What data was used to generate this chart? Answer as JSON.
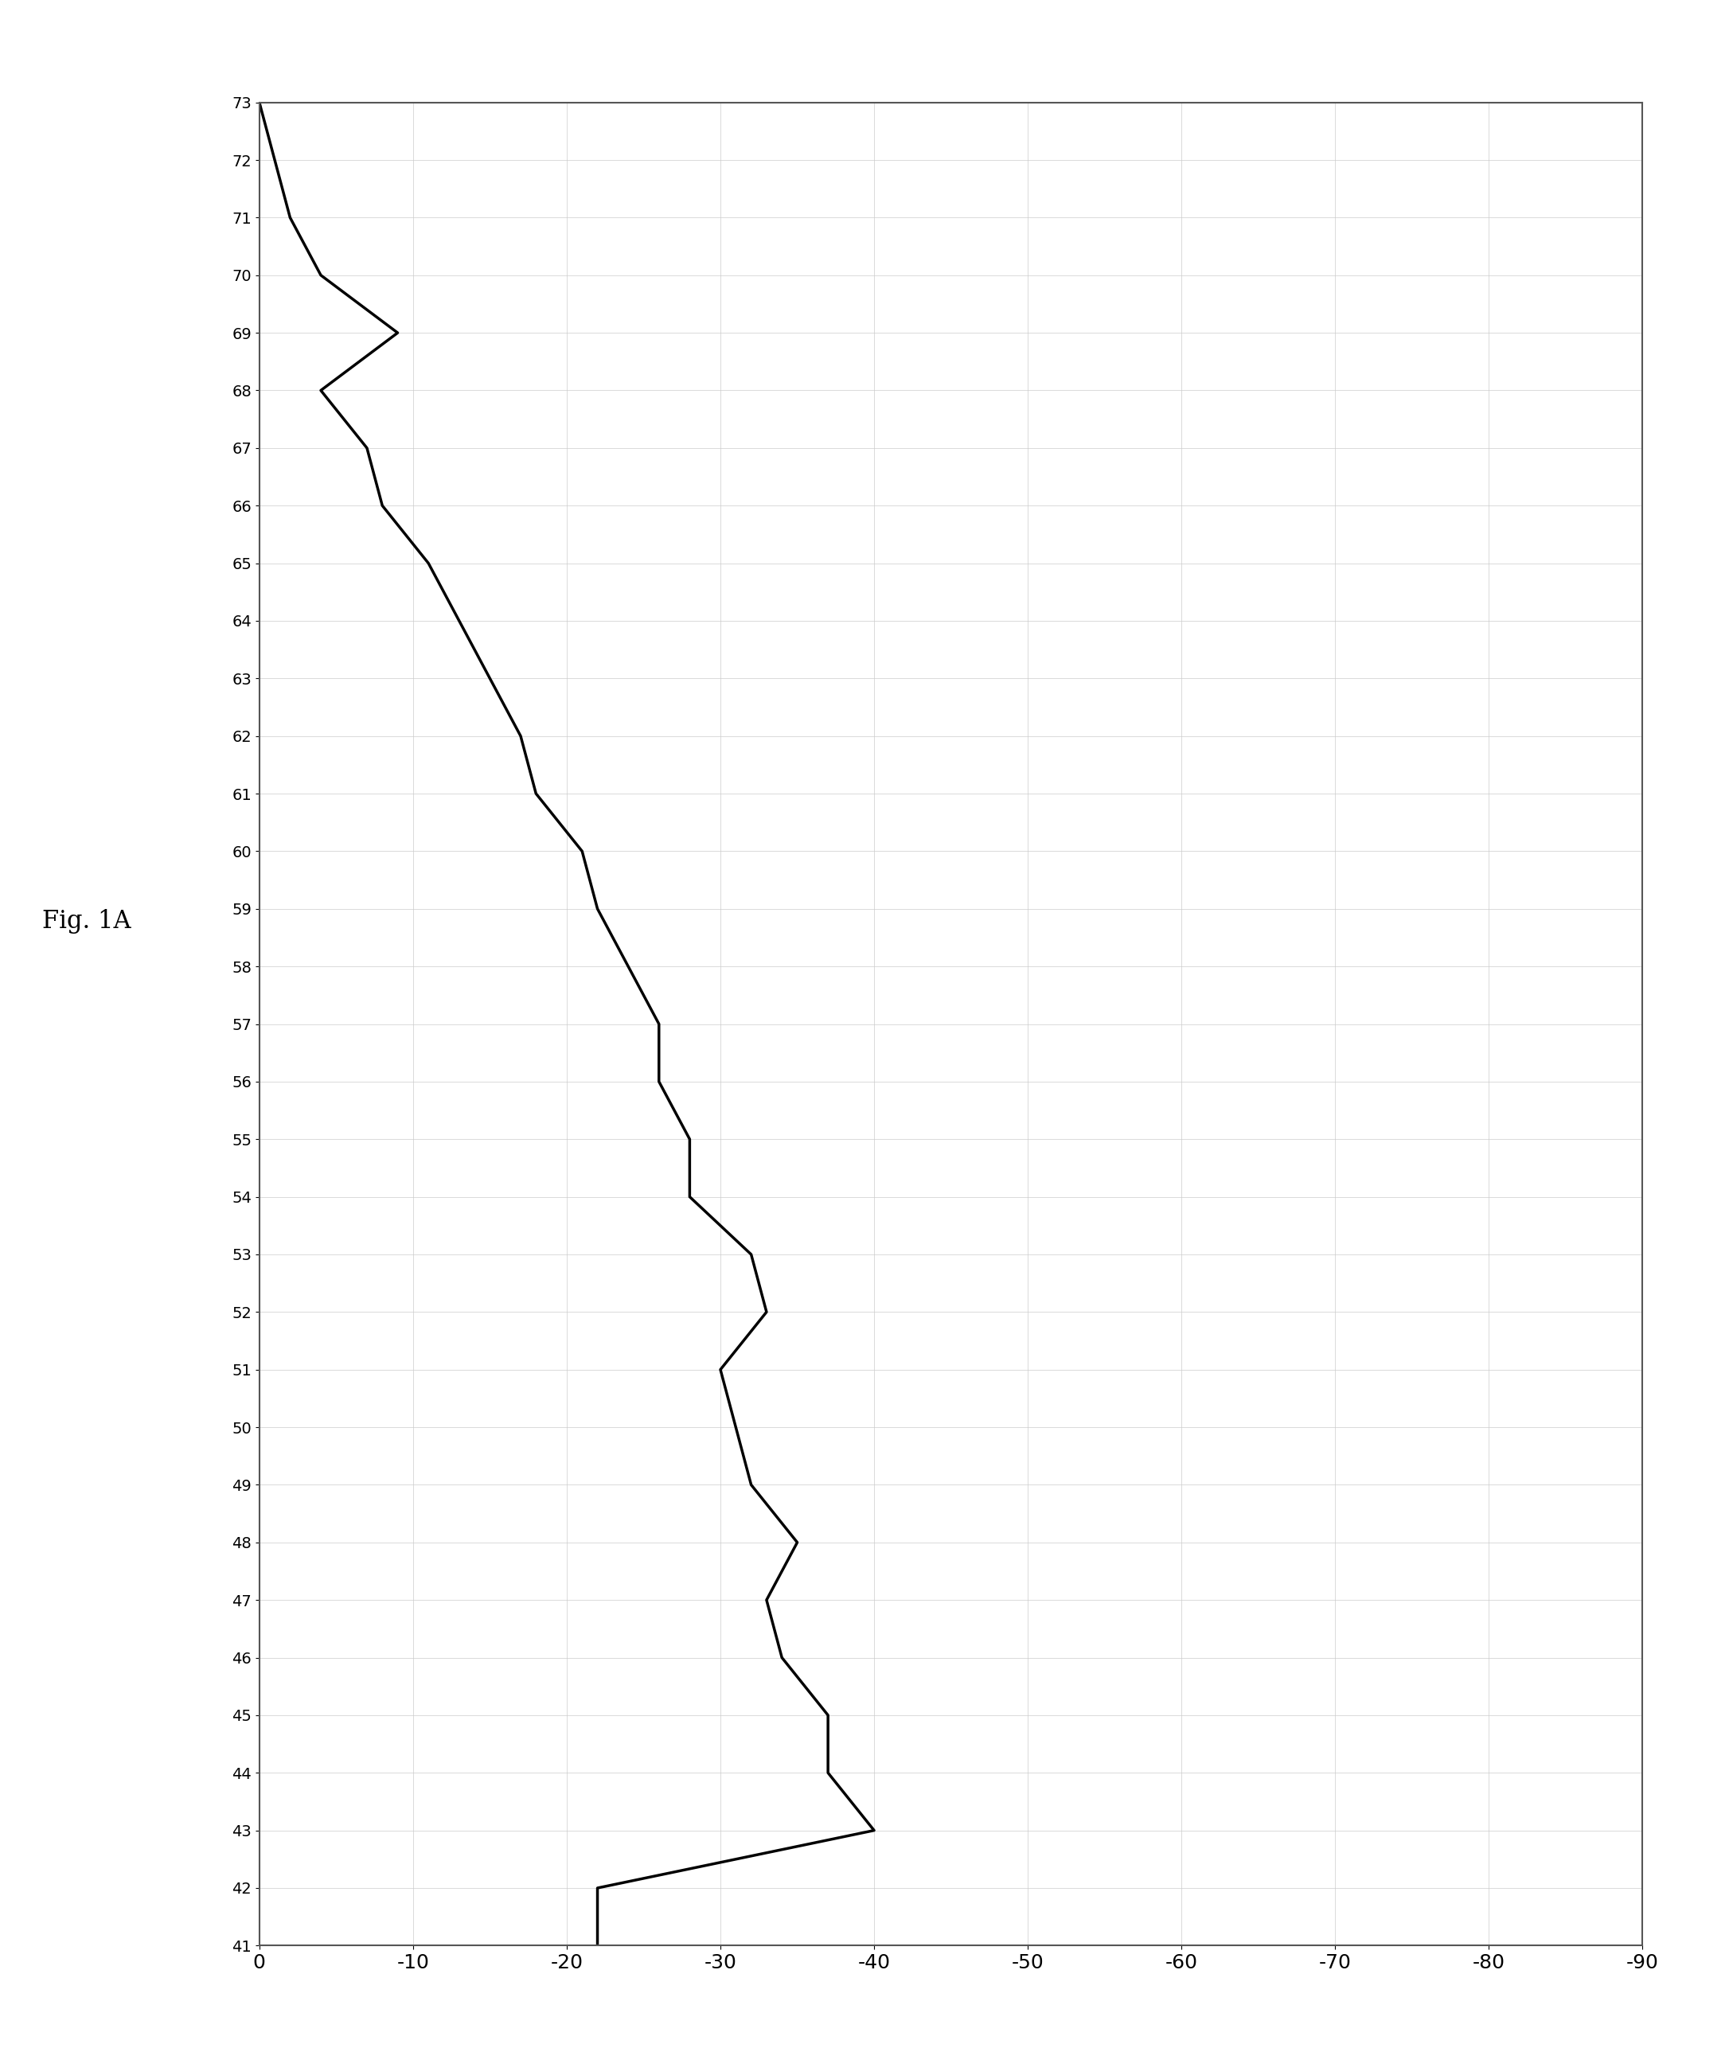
{
  "x_values": [
    41,
    42,
    43,
    44,
    45,
    46,
    47,
    48,
    49,
    50,
    51,
    52,
    53,
    54,
    55,
    56,
    57,
    58,
    59,
    60,
    61,
    62,
    63,
    64,
    65,
    66,
    67,
    68,
    69,
    70,
    71,
    72,
    73
  ],
  "y_values": [
    -22,
    -22,
    -40,
    -37,
    -37,
    -34,
    -33,
    -35,
    -32,
    -31,
    -30,
    -33,
    -32,
    -28,
    -28,
    -26,
    -26,
    -24,
    -22,
    -21,
    -18,
    -17,
    -15,
    -13,
    -11,
    -8,
    -7,
    -4,
    -9,
    -4,
    -2,
    -1,
    0
  ],
  "xlim": [
    41,
    73
  ],
  "ylim": [
    -90,
    0
  ],
  "yticks": [
    0,
    -10,
    -20,
    -30,
    -40,
    -50,
    -60,
    -70,
    -80,
    -90
  ],
  "ylabel_text": "",
  "xlabel_text": "",
  "title": "Fig. 1A",
  "line_color": "#000000",
  "line_width": 2.5,
  "bg_color": "#ffffff",
  "fig_bg": "#ffffff",
  "border_color": "#888888"
}
